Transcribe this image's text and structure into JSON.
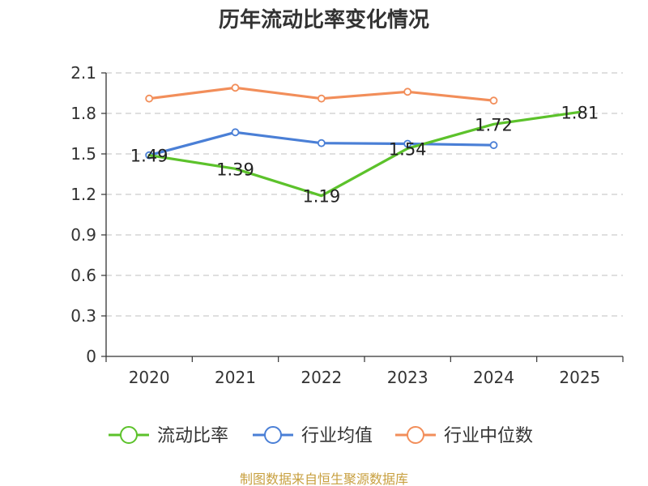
{
  "chart_data": {
    "type": "line",
    "title": "历年流动比率变化情况",
    "categories": [
      "2020",
      "2021",
      "2022",
      "2023",
      "2024",
      "2025"
    ],
    "y_ticks": [
      "0",
      "0.3",
      "0.6",
      "0.9",
      "1.2",
      "1.5",
      "1.8",
      "2.1"
    ],
    "ylim": [
      0,
      2.1
    ],
    "grid": true,
    "legend_position": "bottom",
    "series": [
      {
        "name": "流动比率",
        "color": "#5cc22b",
        "values": [
          1.49,
          1.39,
          1.19,
          1.54,
          1.72,
          1.81
        ],
        "labels": [
          "1.49",
          "1.39",
          "1.19",
          "1.54",
          "1.72",
          "1.81"
        ],
        "show_markers": false,
        "show_labels": true
      },
      {
        "name": "行业均值",
        "color": "#4a7fd6",
        "values": [
          1.49,
          1.66,
          1.58,
          1.575,
          1.565,
          null
        ],
        "show_markers": true,
        "show_labels": false
      },
      {
        "name": "行业中位数",
        "color": "#f28e5a",
        "values": [
          1.91,
          1.99,
          1.91,
          1.96,
          1.895,
          null
        ],
        "show_markers": true,
        "show_labels": false
      }
    ]
  },
  "source_text": "制图数据来自恒生聚源数据库",
  "source_color": "#c8a040"
}
